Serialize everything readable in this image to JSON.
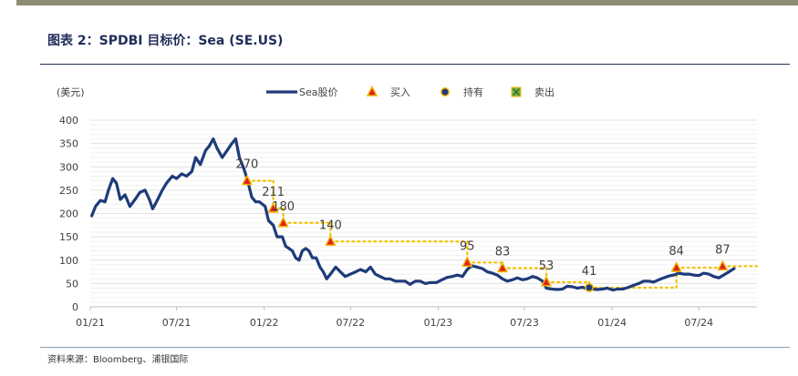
{
  "figure": {
    "title": "图表 2：SPDBI 目标价：Sea (SE.US)",
    "source": "资料来源：Bloomberg、浦银国际"
  },
  "colors": {
    "line": "#1f3b7a",
    "buy": "#e02020",
    "buy_edge": "#f2b500",
    "hold": "#1f3b7a",
    "hold_edge": "#f2b500",
    "sell": "#7ab648",
    "target": "#f2c200",
    "grid": "#e0e0e0",
    "accent_bar": "#8e8b74"
  },
  "chart_data": {
    "type": "line",
    "unit_label": "(美元)",
    "ylim": [
      0,
      400
    ],
    "yticks": [
      0,
      50,
      100,
      150,
      200,
      250,
      300,
      350,
      400
    ],
    "xlim": [
      "2021-01-01",
      "2024-10-31"
    ],
    "xticks": [
      {
        "date": "2021-01-01",
        "label": "01/21"
      },
      {
        "date": "2021-07-01",
        "label": "07/21"
      },
      {
        "date": "2022-01-01",
        "label": "01/22"
      },
      {
        "date": "2022-07-01",
        "label": "07/22"
      },
      {
        "date": "2023-01-01",
        "label": "01/23"
      },
      {
        "date": "2023-07-01",
        "label": "07/23"
      },
      {
        "date": "2024-01-01",
        "label": "01/24"
      },
      {
        "date": "2024-07-01",
        "label": "07/24"
      }
    ],
    "grid": true,
    "legend": {
      "position": "top",
      "items": [
        {
          "key": "line",
          "label": "Sea股价"
        },
        {
          "key": "buy",
          "label": "买入"
        },
        {
          "key": "hold",
          "label": "持有"
        },
        {
          "key": "sell",
          "label": "卖出"
        }
      ]
    },
    "series": [
      {
        "name": "Sea股价",
        "points": [
          [
            "2021-01-04",
            195
          ],
          [
            "2021-01-12",
            215
          ],
          [
            "2021-01-22",
            228
          ],
          [
            "2021-02-01",
            225
          ],
          [
            "2021-02-08",
            250
          ],
          [
            "2021-02-17",
            275
          ],
          [
            "2021-02-25",
            265
          ],
          [
            "2021-03-05",
            230
          ],
          [
            "2021-03-15",
            240
          ],
          [
            "2021-03-25",
            215
          ],
          [
            "2021-04-05",
            230
          ],
          [
            "2021-04-15",
            245
          ],
          [
            "2021-04-26",
            250
          ],
          [
            "2021-05-05",
            230
          ],
          [
            "2021-05-12",
            210
          ],
          [
            "2021-05-20",
            225
          ],
          [
            "2021-06-01",
            250
          ],
          [
            "2021-06-10",
            265
          ],
          [
            "2021-06-22",
            280
          ],
          [
            "2021-07-01",
            275
          ],
          [
            "2021-07-12",
            285
          ],
          [
            "2021-07-22",
            280
          ],
          [
            "2021-08-02",
            290
          ],
          [
            "2021-08-10",
            320
          ],
          [
            "2021-08-20",
            305
          ],
          [
            "2021-08-31",
            335
          ],
          [
            "2021-09-08",
            345
          ],
          [
            "2021-09-16",
            360
          ],
          [
            "2021-09-24",
            340
          ],
          [
            "2021-10-05",
            320
          ],
          [
            "2021-10-15",
            335
          ],
          [
            "2021-10-25",
            350
          ],
          [
            "2021-11-02",
            360
          ],
          [
            "2021-11-10",
            320
          ],
          [
            "2021-11-18",
            300
          ],
          [
            "2021-11-26",
            275
          ],
          [
            "2021-12-06",
            235
          ],
          [
            "2021-12-14",
            225
          ],
          [
            "2021-12-22",
            225
          ],
          [
            "2022-01-03",
            215
          ],
          [
            "2022-01-10",
            185
          ],
          [
            "2022-01-20",
            175
          ],
          [
            "2022-01-28",
            150
          ],
          [
            "2022-02-08",
            150
          ],
          [
            "2022-02-15",
            130
          ],
          [
            "2022-02-22",
            125
          ],
          [
            "2022-03-01",
            120
          ],
          [
            "2022-03-08",
            105
          ],
          [
            "2022-03-15",
            100
          ],
          [
            "2022-03-22",
            120
          ],
          [
            "2022-03-29",
            125
          ],
          [
            "2022-04-05",
            120
          ],
          [
            "2022-04-12",
            105
          ],
          [
            "2022-04-20",
            105
          ],
          [
            "2022-04-28",
            85
          ],
          [
            "2022-05-05",
            75
          ],
          [
            "2022-05-12",
            60
          ],
          [
            "2022-05-20",
            70
          ],
          [
            "2022-05-31",
            85
          ],
          [
            "2022-06-10",
            75
          ],
          [
            "2022-06-20",
            65
          ],
          [
            "2022-07-01",
            70
          ],
          [
            "2022-07-12",
            75
          ],
          [
            "2022-07-22",
            80
          ],
          [
            "2022-08-02",
            75
          ],
          [
            "2022-08-12",
            85
          ],
          [
            "2022-08-22",
            70
          ],
          [
            "2022-09-01",
            65
          ],
          [
            "2022-09-12",
            60
          ],
          [
            "2022-09-22",
            60
          ],
          [
            "2022-10-03",
            55
          ],
          [
            "2022-10-13",
            55
          ],
          [
            "2022-10-24",
            55
          ],
          [
            "2022-11-03",
            48
          ],
          [
            "2022-11-14",
            55
          ],
          [
            "2022-11-24",
            55
          ],
          [
            "2022-12-05",
            50
          ],
          [
            "2022-12-15",
            52
          ],
          [
            "2022-12-28",
            52
          ],
          [
            "2023-01-09",
            58
          ],
          [
            "2023-01-20",
            63
          ],
          [
            "2023-01-31",
            65
          ],
          [
            "2023-02-10",
            68
          ],
          [
            "2023-02-21",
            65
          ],
          [
            "2023-03-03",
            80
          ],
          [
            "2023-03-13",
            88
          ],
          [
            "2023-03-24",
            85
          ],
          [
            "2023-04-04",
            82
          ],
          [
            "2023-04-14",
            75
          ],
          [
            "2023-04-25",
            72
          ],
          [
            "2023-05-05",
            68
          ],
          [
            "2023-05-16",
            60
          ],
          [
            "2023-05-26",
            55
          ],
          [
            "2023-06-06",
            58
          ],
          [
            "2023-06-16",
            62
          ],
          [
            "2023-06-27",
            58
          ],
          [
            "2023-07-07",
            60
          ],
          [
            "2023-07-18",
            65
          ],
          [
            "2023-07-28",
            62
          ],
          [
            "2023-08-08",
            55
          ],
          [
            "2023-08-16",
            40
          ],
          [
            "2023-08-28",
            38
          ],
          [
            "2023-09-08",
            37
          ],
          [
            "2023-09-19",
            38
          ],
          [
            "2023-09-29",
            44
          ],
          [
            "2023-10-10",
            43
          ],
          [
            "2023-10-20",
            40
          ],
          [
            "2023-10-31",
            42
          ],
          [
            "2023-11-10",
            38
          ],
          [
            "2023-11-21",
            38
          ],
          [
            "2023-12-01",
            37
          ],
          [
            "2023-12-12",
            38
          ],
          [
            "2023-12-22",
            40
          ],
          [
            "2024-01-03",
            36
          ],
          [
            "2024-01-12",
            38
          ],
          [
            "2024-01-24",
            38
          ],
          [
            "2024-02-05",
            42
          ],
          [
            "2024-02-15",
            46
          ],
          [
            "2024-02-26",
            50
          ],
          [
            "2024-03-07",
            55
          ],
          [
            "2024-03-18",
            55
          ],
          [
            "2024-03-28",
            53
          ],
          [
            "2024-04-08",
            58
          ],
          [
            "2024-04-18",
            62
          ],
          [
            "2024-04-29",
            66
          ],
          [
            "2024-05-09",
            68
          ],
          [
            "2024-05-20",
            72
          ],
          [
            "2024-05-30",
            70
          ],
          [
            "2024-06-10",
            70
          ],
          [
            "2024-06-20",
            68
          ],
          [
            "2024-07-01",
            67
          ],
          [
            "2024-07-11",
            72
          ],
          [
            "2024-07-22",
            70
          ],
          [
            "2024-08-01",
            65
          ],
          [
            "2024-08-12",
            62
          ],
          [
            "2024-08-22",
            68
          ],
          [
            "2024-09-02",
            75
          ],
          [
            "2024-09-13",
            82
          ]
        ]
      }
    ],
    "ratings": [
      {
        "rating": "买入",
        "date": "2021-11-26",
        "target": 270,
        "target_until": "2022-01-20",
        "label": "270"
      },
      {
        "rating": "买入",
        "date": "2022-01-20",
        "target": 211,
        "target_until": "2022-02-10",
        "label": "211"
      },
      {
        "rating": "买入",
        "date": "2022-02-10",
        "target": 180,
        "target_until": "2022-05-20",
        "label": "180"
      },
      {
        "rating": "买入",
        "date": "2022-05-20",
        "target": 140,
        "target_until": "2023-03-03",
        "label": "140"
      },
      {
        "rating": "买入",
        "date": "2023-03-03",
        "target": 95,
        "target_until": "2023-05-16",
        "label": "95"
      },
      {
        "rating": "买入",
        "date": "2023-05-16",
        "target": 83,
        "target_until": "2023-08-16",
        "label": "83"
      },
      {
        "rating": "买入",
        "date": "2023-08-16",
        "target": 53,
        "target_until": "2023-11-14",
        "label": "53"
      },
      {
        "rating": "持有",
        "date": "2023-11-14",
        "target": 41,
        "target_until": "2024-05-15",
        "label": "41"
      },
      {
        "rating": "买入",
        "date": "2024-05-15",
        "target": 84,
        "target_until": "2024-08-20",
        "label": "84"
      },
      {
        "rating": "买入",
        "date": "2024-08-20",
        "target": 87,
        "target_until": "2024-10-31",
        "label": "87"
      }
    ]
  }
}
